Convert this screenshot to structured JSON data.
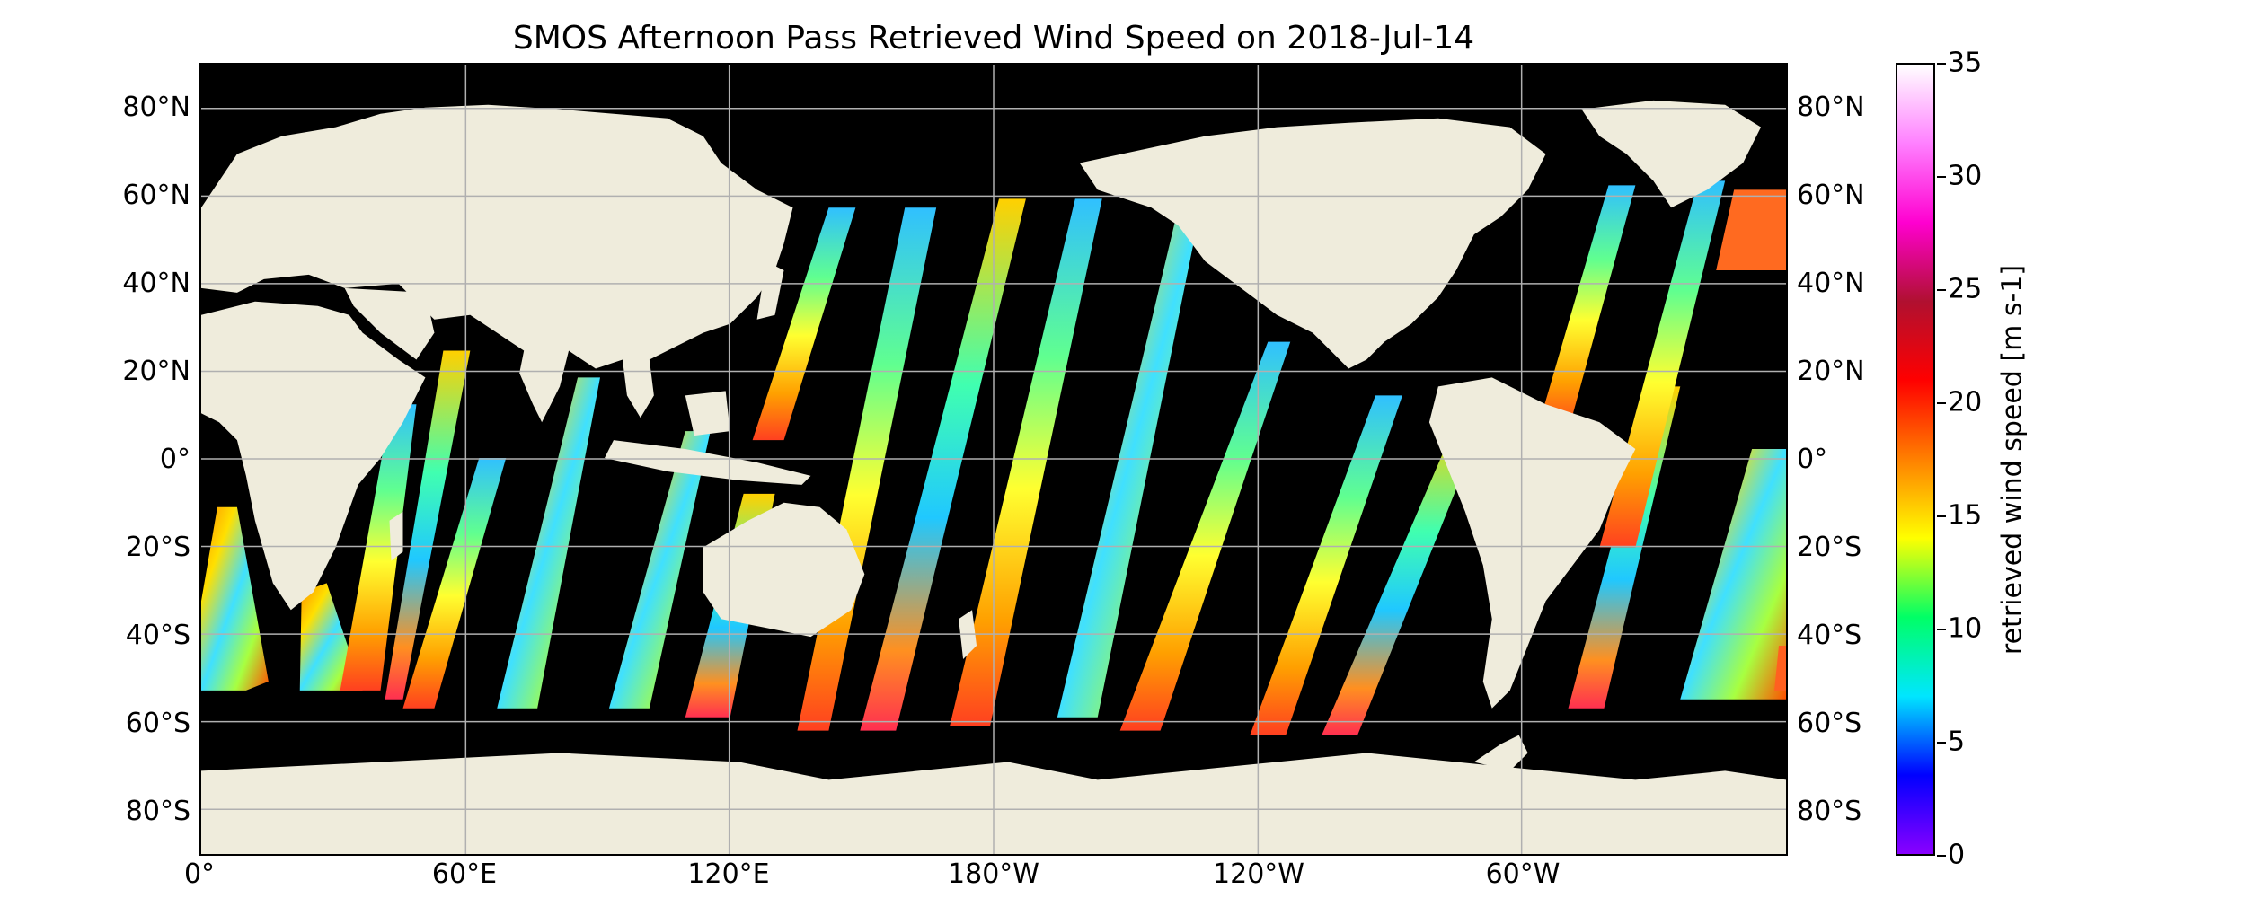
{
  "title": "SMOS Afternoon Pass Retrieved Wind Speed on 2018-Jul-14",
  "map": {
    "lat_labels": [
      "80°N",
      "60°N",
      "40°N",
      "20°N",
      "0°",
      "20°S",
      "40°S",
      "60°S",
      "80°S"
    ],
    "lon_labels": [
      "0°",
      "60°E",
      "120°E",
      "180°W",
      "120°W",
      "60°W"
    ],
    "colors": {
      "land": "#efecdc",
      "ocean_no_data": "#000000",
      "gridline": "#b0b0b0"
    }
  },
  "colorbar": {
    "label": "retrieved wind speed [m s-1]",
    "tick_labels": [
      "0",
      "5",
      "10",
      "15",
      "20",
      "25",
      "30",
      "35"
    ],
    "range": [
      0,
      35
    ],
    "colors": [
      "#8a00ff",
      "#0000ff",
      "#00e6ff",
      "#00ff66",
      "#ffff00",
      "#ff8000",
      "#ff0000",
      "#b01030",
      "#ff00d0",
      "#ff80ff",
      "#ffffff"
    ]
  }
}
